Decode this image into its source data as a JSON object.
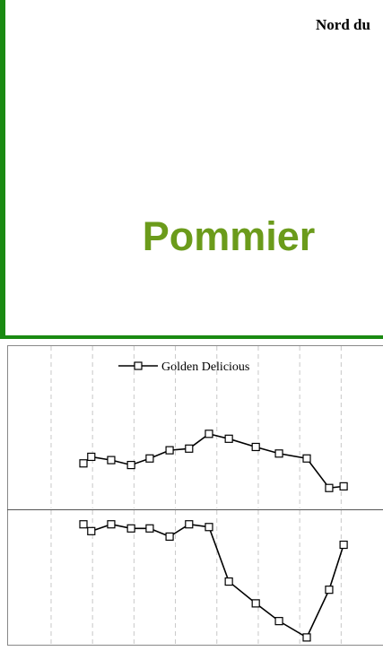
{
  "header": {
    "text": "Nord du"
  },
  "title": "Pommier",
  "chart_data": [
    {
      "type": "line",
      "xlim": [
        -1.06,
        8.01
      ],
      "xticks": [
        0,
        1,
        2,
        3,
        4,
        5,
        6,
        7
      ],
      "ylim": [
        0,
        100
      ],
      "grid": true,
      "legend": "top",
      "x": [
        0.78,
        0.97,
        1.45,
        1.93,
        2.38,
        2.86,
        3.33,
        3.81,
        4.29,
        4.94,
        5.5,
        6.17,
        6.71,
        7.06
      ],
      "series": [
        {
          "name": "Golden Delicious",
          "color": "#000000",
          "values": [
            28,
            32,
            30,
            27,
            31,
            36,
            37,
            46,
            43,
            38,
            34,
            31,
            13,
            14
          ]
        }
      ]
    },
    {
      "type": "line",
      "xlim": [
        -1.06,
        8.01
      ],
      "xticks": [
        0,
        1,
        2,
        3,
        4,
        5,
        6,
        7
      ],
      "ylim": [
        0,
        100
      ],
      "grid": true,
      "x": [
        0.78,
        0.97,
        1.45,
        1.93,
        2.38,
        2.86,
        3.33,
        3.81,
        4.29,
        4.94,
        5.5,
        6.17,
        6.71,
        7.06
      ],
      "series": [
        {
          "color": "#000000",
          "values": [
            89,
            84,
            89,
            86,
            86,
            80,
            89,
            87,
            47,
            31,
            18,
            6,
            41,
            74
          ]
        }
      ]
    }
  ]
}
